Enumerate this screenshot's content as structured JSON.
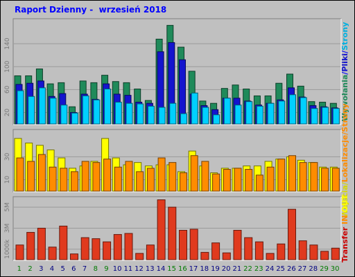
{
  "title": "Raport Dzienny -  wrzesień 2018",
  "chart_data": [
    {
      "type": "bar",
      "panel": "pages",
      "x": [
        1,
        2,
        3,
        4,
        5,
        6,
        7,
        8,
        9,
        10,
        11,
        12,
        13,
        14,
        15,
        16,
        17,
        18,
        19,
        20,
        21,
        22,
        23,
        24,
        25,
        26,
        27,
        28,
        29,
        30
      ],
      "yticks": [
        "20",
        "60",
        "100",
        "140"
      ],
      "ylim": [
        0,
        180
      ],
      "series": [
        {
          "name": "Wywołania",
          "color": "#1f8a5a",
          "values": [
            84,
            84,
            96,
            70,
            72,
            30,
            75,
            72,
            85,
            74,
            72,
            61,
            41,
            148,
            172,
            134,
            92,
            40,
            36,
            62,
            68,
            61,
            49,
            49,
            71,
            87,
            66,
            39,
            38,
            36
          ]
        },
        {
          "name": "Pliki",
          "color": "#1414ce",
          "values": [
            69,
            71,
            75,
            48,
            53,
            20,
            52,
            43,
            70,
            52,
            50,
            38,
            36,
            126,
            142,
            112,
            52,
            32,
            25,
            45,
            45,
            40,
            33,
            36,
            42,
            63,
            47,
            32,
            30,
            28
          ]
        },
        {
          "name": "Strony",
          "color": "#00d0ff",
          "values": [
            58,
            48,
            63,
            45,
            33,
            19,
            49,
            42,
            61,
            38,
            36,
            35,
            31,
            29,
            36,
            18,
            54,
            29,
            16,
            45,
            33,
            39,
            31,
            36,
            40,
            51,
            46,
            27,
            29,
            27
          ]
        }
      ],
      "side_labels": [
        "Wywołania",
        "/",
        "Pliki",
        "/",
        "Strony"
      ]
    },
    {
      "type": "bar",
      "panel": "visits",
      "x": [
        1,
        2,
        3,
        4,
        5,
        6,
        7,
        8,
        9,
        10,
        11,
        12,
        13,
        14,
        15,
        16,
        17,
        18,
        19,
        20,
        21,
        22,
        23,
        24,
        25,
        26,
        27,
        28,
        29,
        30
      ],
      "yticks": [
        "10",
        "30"
      ],
      "ylim": [
        0,
        52
      ],
      "series": [
        {
          "name": "Wejścia",
          "color": "#ffff00",
          "values": [
            46,
            42,
            40,
            36,
            29,
            20,
            22,
            26,
            46,
            29,
            23,
            25,
            22,
            23,
            23,
            17,
            35,
            22,
            16,
            20,
            20,
            22,
            22,
            26,
            28,
            30,
            27,
            25,
            21,
            21
          ]
        },
        {
          "name": "Lokalizacje",
          "color": "#ff8c00",
          "values": [
            29,
            26,
            32,
            21,
            20,
            17,
            26,
            25,
            28,
            21,
            26,
            17,
            20,
            29,
            25,
            16,
            31,
            26,
            15,
            19,
            20,
            19,
            14,
            21,
            28,
            31,
            25,
            25,
            20,
            20
          ]
        }
      ],
      "side_labels": [
        "Wejścia",
        "/",
        "Lokalizacje",
        "/",
        "Strony"
      ]
    },
    {
      "type": "bar",
      "panel": "transfer",
      "x": [
        1,
        2,
        3,
        4,
        5,
        6,
        7,
        8,
        9,
        10,
        11,
        12,
        13,
        14,
        15,
        16,
        17,
        18,
        19,
        20,
        21,
        22,
        23,
        24,
        25,
        26,
        27,
        28,
        29,
        30
      ],
      "yticks": [
        "1000k",
        "3M",
        "5M"
      ],
      "ylim": [
        0,
        5.8
      ],
      "series": [
        {
          "name": "Transfer",
          "color": "#e03a1e",
          "values": [
            1.4,
            2.6,
            3.0,
            1.2,
            3.2,
            0.55,
            2.1,
            2.0,
            1.7,
            2.4,
            2.5,
            0.6,
            1.4,
            5.7,
            5.0,
            2.8,
            2.9,
            0.7,
            1.6,
            0.65,
            2.8,
            2.1,
            1.7,
            0.6,
            1.5,
            4.8,
            1.8,
            1.4,
            0.8,
            1.1
          ]
        }
      ],
      "side_labels": [
        "Transfer",
        " IN",
        " OUT"
      ]
    }
  ],
  "weekend_days": [
    1,
    2,
    8,
    9,
    15,
    16,
    22,
    23,
    29,
    30
  ],
  "colors": {
    "background": "#c0c0c0",
    "panel_bg": "#c0c0c0",
    "grid": "#9a9a9a",
    "weekend_label": "#007a00",
    "weekday_label": "#000080"
  }
}
